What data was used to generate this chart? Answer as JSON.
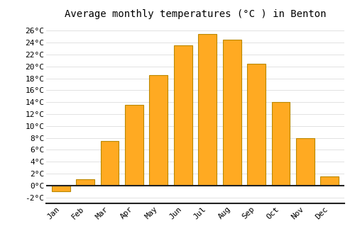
{
  "title": "Average monthly temperatures (°C ) in Benton",
  "months": [
    "Jan",
    "Feb",
    "Mar",
    "Apr",
    "May",
    "Jun",
    "Jul",
    "Aug",
    "Sep",
    "Oct",
    "Nov",
    "Dec"
  ],
  "values": [
    -1.0,
    1.0,
    7.5,
    13.5,
    18.5,
    23.5,
    25.5,
    24.5,
    20.5,
    14.0,
    8.0,
    1.5
  ],
  "bar_color": "#FFAA22",
  "bar_edge_color": "#BB8800",
  "background_color": "#FFFFFF",
  "grid_color": "#DDDDDD",
  "ylim": [
    -3,
    27
  ],
  "yticks": [
    -2,
    0,
    2,
    4,
    6,
    8,
    10,
    12,
    14,
    16,
    18,
    20,
    22,
    24,
    26
  ],
  "ytick_labels": [
    "-2°C",
    "0°C",
    "2°C",
    "4°C",
    "6°C",
    "8°C",
    "10°C",
    "12°C",
    "14°C",
    "16°C",
    "18°C",
    "20°C",
    "22°C",
    "24°C",
    "26°C"
  ],
  "title_fontsize": 10,
  "tick_fontsize": 8,
  "bar_width": 0.75
}
